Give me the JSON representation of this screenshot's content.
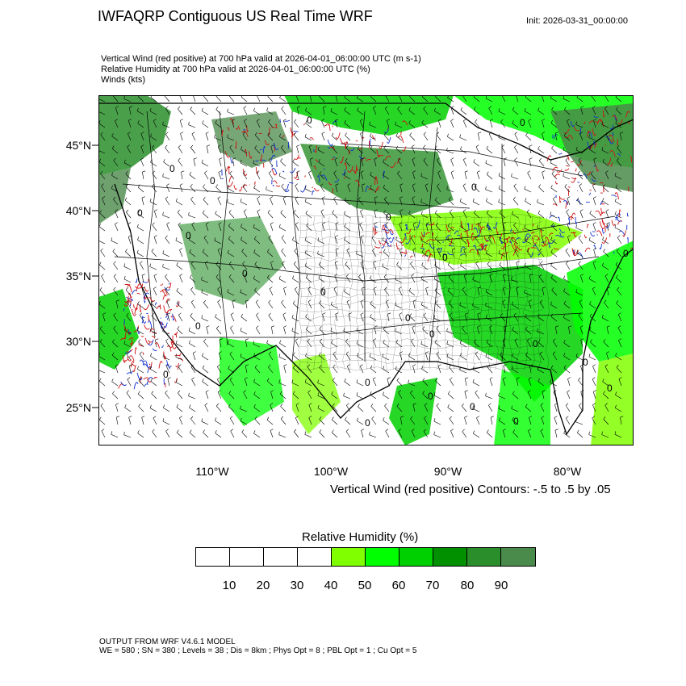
{
  "header": {
    "title": "IWFAQRP Contiguous US Real Time WRF",
    "init": "Init: 2026-03-31_00:00:00"
  },
  "subtitles": [
    "Vertical Wind (red positive) at 700 hPa valid at 2026-04-01_06:00:00 UTC   (m s-1)",
    "Relative Humidity at 700 hPa valid at 2026-04-01_06:00:00 UTC   (%)",
    "Winds   (kts)"
  ],
  "map": {
    "lat_labels": [
      "45°N",
      "40°N",
      "35°N",
      "30°N",
      "25°N"
    ],
    "lon_labels": [
      "110°W",
      "100°W",
      "90°W",
      "80°W"
    ],
    "contour_note": "Vertical Wind (red positive) Contours: -.5 to .5 by .05",
    "zero_label": "0",
    "colors": {
      "ocean_dry": "#ffffff",
      "land_outline": "#000000",
      "updraft": "#d01010",
      "downdraft": "#1030d0",
      "barb": "#000000"
    }
  },
  "legend": {
    "title": "Relative Humidity  (%)",
    "colors": [
      "#ffffff",
      "#ffffff",
      "#ffffff",
      "#ffffff",
      "#80ff00",
      "#00ff00",
      "#00d000",
      "#009000",
      "#2a8f2a",
      "#4a8a4a"
    ],
    "ticks": [
      "10",
      "20",
      "30",
      "40",
      "50",
      "60",
      "70",
      "80",
      "90"
    ]
  },
  "footer": [
    "OUTPUT FROM WRF V4.6.1 MODEL",
    "WE = 580 ; SN = 380 ; Levels = 38 ; Dis = 8km ; Phys Opt = 8 ; PBL Opt = 1 ; Cu Opt = 5"
  ]
}
